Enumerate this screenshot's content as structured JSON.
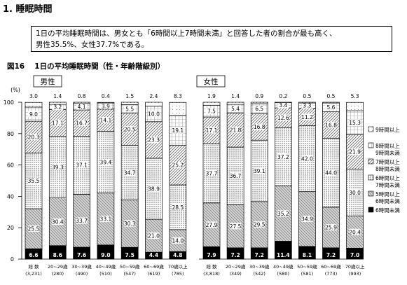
{
  "section": {
    "title": "1. 睡眠時間"
  },
  "summary": {
    "line1": "1日の平均睡眠時間は、男女とも「6時間以上7時間未満」と回答した者の割合が最も高く、",
    "line2": "男性35.5%、女性37.7%である。"
  },
  "figure": {
    "caption": "図16　 1日の平均睡眠時間（性・年齢階級別）"
  },
  "colors": {
    "border": "#000000",
    "background": "#ffffff"
  },
  "chart_data": [
    {
      "type": "bar",
      "stacked": true,
      "title": "男性",
      "ylabel": "(%)",
      "ylim": [
        0,
        100
      ],
      "yticks": [
        0,
        20,
        40,
        60,
        80,
        100
      ],
      "categories": [
        "総 数",
        "20~29歳",
        "30~39歳",
        "40~49歳",
        "50~59歳",
        "60~69歳",
        "70歳以上"
      ],
      "counts": [
        "(3,231)",
        "(280)",
        "(490)",
        "(510)",
        "(547)",
        "(619)",
        "(785)"
      ],
      "series": [
        {
          "name": "6時間未満",
          "values": [
            6.6,
            8.6,
            7.6,
            9.0,
            7.5,
            4.4,
            4.8
          ]
        },
        {
          "name": "5時間以上6時間未満",
          "values": [
            25.5,
            30.4,
            33.7,
            33.1,
            30.3,
            21.0,
            14.0
          ]
        },
        {
          "name": "6時間以上7時間未満",
          "values": [
            35.5,
            39.3,
            37.1,
            39.4,
            34.7,
            38.9,
            28.5
          ]
        },
        {
          "name": "7時間以上8時間未満",
          "values": [
            20.3,
            17.1,
            16.7,
            14.1,
            20.5,
            23.3,
            25.2
          ]
        },
        {
          "name": "8時間以上9時間未満",
          "values": [
            9.0,
            3.2,
            4.1,
            3.9,
            5.5,
            10.0,
            19.1
          ]
        },
        {
          "name": "9時間以上",
          "values": [
            3.0,
            1.4,
            0.8,
            0.4,
            1.5,
            2.4,
            8.3
          ]
        }
      ]
    },
    {
      "type": "bar",
      "stacked": true,
      "title": "女性",
      "ylim": [
        0,
        100
      ],
      "categories": [
        "総 数",
        "20~29歳",
        "30~39歳",
        "40~49歳",
        "50~59歳",
        "60~69歳",
        "70歳以上"
      ],
      "counts": [
        "(3,818)",
        "(349)",
        "(542)",
        "(580)",
        "(581)",
        "(773)",
        "(993)"
      ],
      "series": [
        {
          "name": "6時間未満",
          "values": [
            7.9,
            7.2,
            7.2,
            11.4,
            8.1,
            7.2,
            7.0
          ]
        },
        {
          "name": "5時間以上6時間未満",
          "values": [
            27.9,
            27.5,
            29.5,
            35.2,
            34.9,
            25.9,
            20.4
          ]
        },
        {
          "name": "6時間以上7時間未満",
          "values": [
            37.7,
            36.7,
            39.1,
            37.2,
            42.0,
            44.0,
            30.0
          ]
        },
        {
          "name": "7時間以上8時間未満",
          "values": [
            17.1,
            21.8,
            16.8,
            12.6,
            11.2,
            16.8,
            21.9
          ]
        },
        {
          "name": "8時間以上9時間未満",
          "values": [
            7.5,
            5.4,
            6.5,
            3.4,
            3.3,
            5.6,
            15.3
          ]
        },
        {
          "name": "9時間以上",
          "values": [
            1.9,
            1.4,
            0.9,
            0.2,
            0.5,
            0.5,
            5.3
          ]
        }
      ]
    }
  ],
  "legend": [
    {
      "line1": "9時間以上",
      "line2": ""
    },
    {
      "line1": "8時間以上",
      "line2": "9時間未満"
    },
    {
      "line1": "7時間以上",
      "line2": "8時間未満"
    },
    {
      "line1": "6時間以上",
      "line2": "7時間未満"
    },
    {
      "line1": "5時間以上",
      "line2": "6時間未満"
    },
    {
      "line1": "6時間未満",
      "line2": ""
    }
  ]
}
